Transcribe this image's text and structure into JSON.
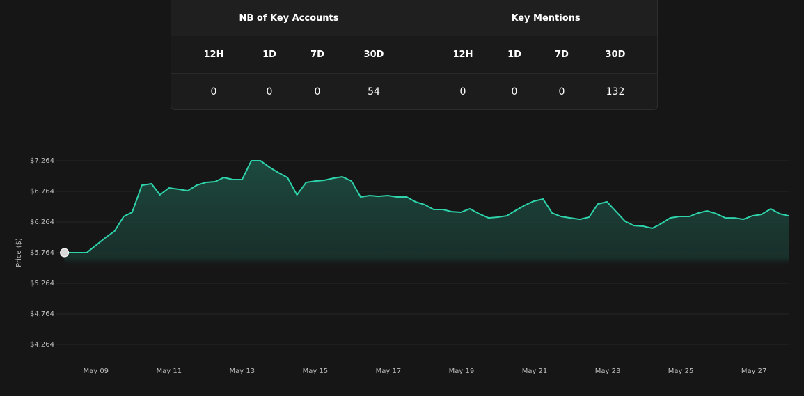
{
  "table": {
    "groups": [
      {
        "title": "NB of Key Accounts",
        "headers": [
          "12H",
          "1D",
          "7D",
          "30D"
        ],
        "values": [
          0,
          0,
          0,
          54
        ]
      },
      {
        "title": "Key Mentions",
        "headers": [
          "12H",
          "1D",
          "7D",
          "30D"
        ],
        "values": [
          0,
          0,
          0,
          132
        ]
      }
    ]
  },
  "chart_data": {
    "type": "line",
    "y_label": "Price ($)",
    "color": "#2ed3ab",
    "grid": true,
    "xlim": [
      7.9,
      27.95
    ],
    "ylim": [
      4.094,
      7.503
    ],
    "xticks": [
      {
        "value": 9,
        "label": "May 09"
      },
      {
        "value": 11,
        "label": "May 11"
      },
      {
        "value": 13,
        "label": "May 13"
      },
      {
        "value": 15,
        "label": "May 15"
      },
      {
        "value": 17,
        "label": "May 17"
      },
      {
        "value": 19,
        "label": "May 19"
      },
      {
        "value": 21,
        "label": "May 21"
      },
      {
        "value": 23,
        "label": "May 23"
      },
      {
        "value": 25,
        "label": "May 25"
      },
      {
        "value": 27,
        "label": "May 27"
      }
    ],
    "yticks": [
      {
        "value": 4.264,
        "label": "$4.264"
      },
      {
        "value": 4.764,
        "label": "$4.764"
      },
      {
        "value": 5.264,
        "label": "$5.264"
      },
      {
        "value": 5.764,
        "label": "$5.764"
      },
      {
        "value": 6.264,
        "label": "$6.264"
      },
      {
        "value": 6.764,
        "label": "$6.764"
      },
      {
        "value": 7.264,
        "label": "$7.264"
      }
    ],
    "x": [
      8.14,
      8.75,
      9.25,
      9.51,
      9.76,
      9.99,
      10.26,
      10.52,
      10.75,
      11.0,
      11.27,
      11.51,
      11.76,
      12.01,
      12.26,
      12.5,
      12.75,
      13.0,
      13.25,
      13.5,
      13.74,
      13.99,
      14.24,
      14.5,
      14.75,
      15.0,
      15.25,
      15.5,
      15.74,
      15.99,
      16.24,
      16.49,
      16.73,
      16.98,
      17.23,
      17.5,
      17.74,
      17.99,
      18.24,
      18.49,
      18.73,
      18.98,
      19.23,
      19.48,
      19.74,
      19.99,
      20.24,
      20.49,
      20.73,
      20.98,
      21.23,
      21.48,
      21.72,
      21.97,
      22.24,
      22.49,
      22.73,
      22.98,
      23.23,
      23.48,
      23.72,
      23.97,
      24.22,
      24.47,
      24.71,
      24.96,
      25.23,
      25.48,
      25.72,
      25.97,
      26.22,
      26.47,
      26.71,
      26.96,
      27.21,
      27.46,
      27.7,
      27.95
    ],
    "values": [
      5.764,
      5.764,
      6.003,
      6.116,
      6.355,
      6.423,
      6.866,
      6.889,
      6.707,
      6.821,
      6.798,
      6.775,
      6.866,
      6.912,
      6.923,
      6.991,
      6.957,
      6.957,
      7.264,
      7.264,
      7.162,
      7.071,
      6.991,
      6.707,
      6.912,
      6.934,
      6.946,
      6.98,
      7.003,
      6.934,
      6.673,
      6.696,
      6.684,
      6.696,
      6.673,
      6.673,
      6.594,
      6.548,
      6.469,
      6.469,
      6.434,
      6.423,
      6.48,
      6.4,
      6.332,
      6.344,
      6.366,
      6.457,
      6.537,
      6.605,
      6.639,
      6.412,
      6.355,
      6.332,
      6.309,
      6.344,
      6.559,
      6.594,
      6.434,
      6.275,
      6.207,
      6.196,
      6.162,
      6.241,
      6.332,
      6.355,
      6.355,
      6.412,
      6.446,
      6.4,
      6.332,
      6.332,
      6.309,
      6.366,
      6.389,
      6.48,
      6.4,
      6.366
    ]
  }
}
